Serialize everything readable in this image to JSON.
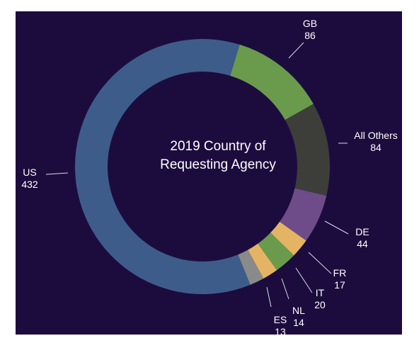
{
  "chart_data": {
    "type": "pie",
    "title_lines": [
      "2019  Country of",
      "Requesting Agency"
    ],
    "categories": [
      "US",
      "GB",
      "All Others",
      "DE",
      "FR",
      "IT",
      "NL",
      "ES"
    ],
    "values": [
      432,
      86,
      84,
      44,
      17,
      20,
      14,
      13
    ],
    "colors": [
      "#3e5c8a",
      "#6a9b4c",
      "#3d3d3a",
      "#6e4c8a",
      "#e4b464",
      "#6a9b4c",
      "#e4b464",
      "#8a8a8a"
    ],
    "background": "#1c0c3e",
    "text_color": "#ffffff",
    "slice_order": "clockwise: GB, All Others, DE, FR, IT, NL, ES, US"
  }
}
